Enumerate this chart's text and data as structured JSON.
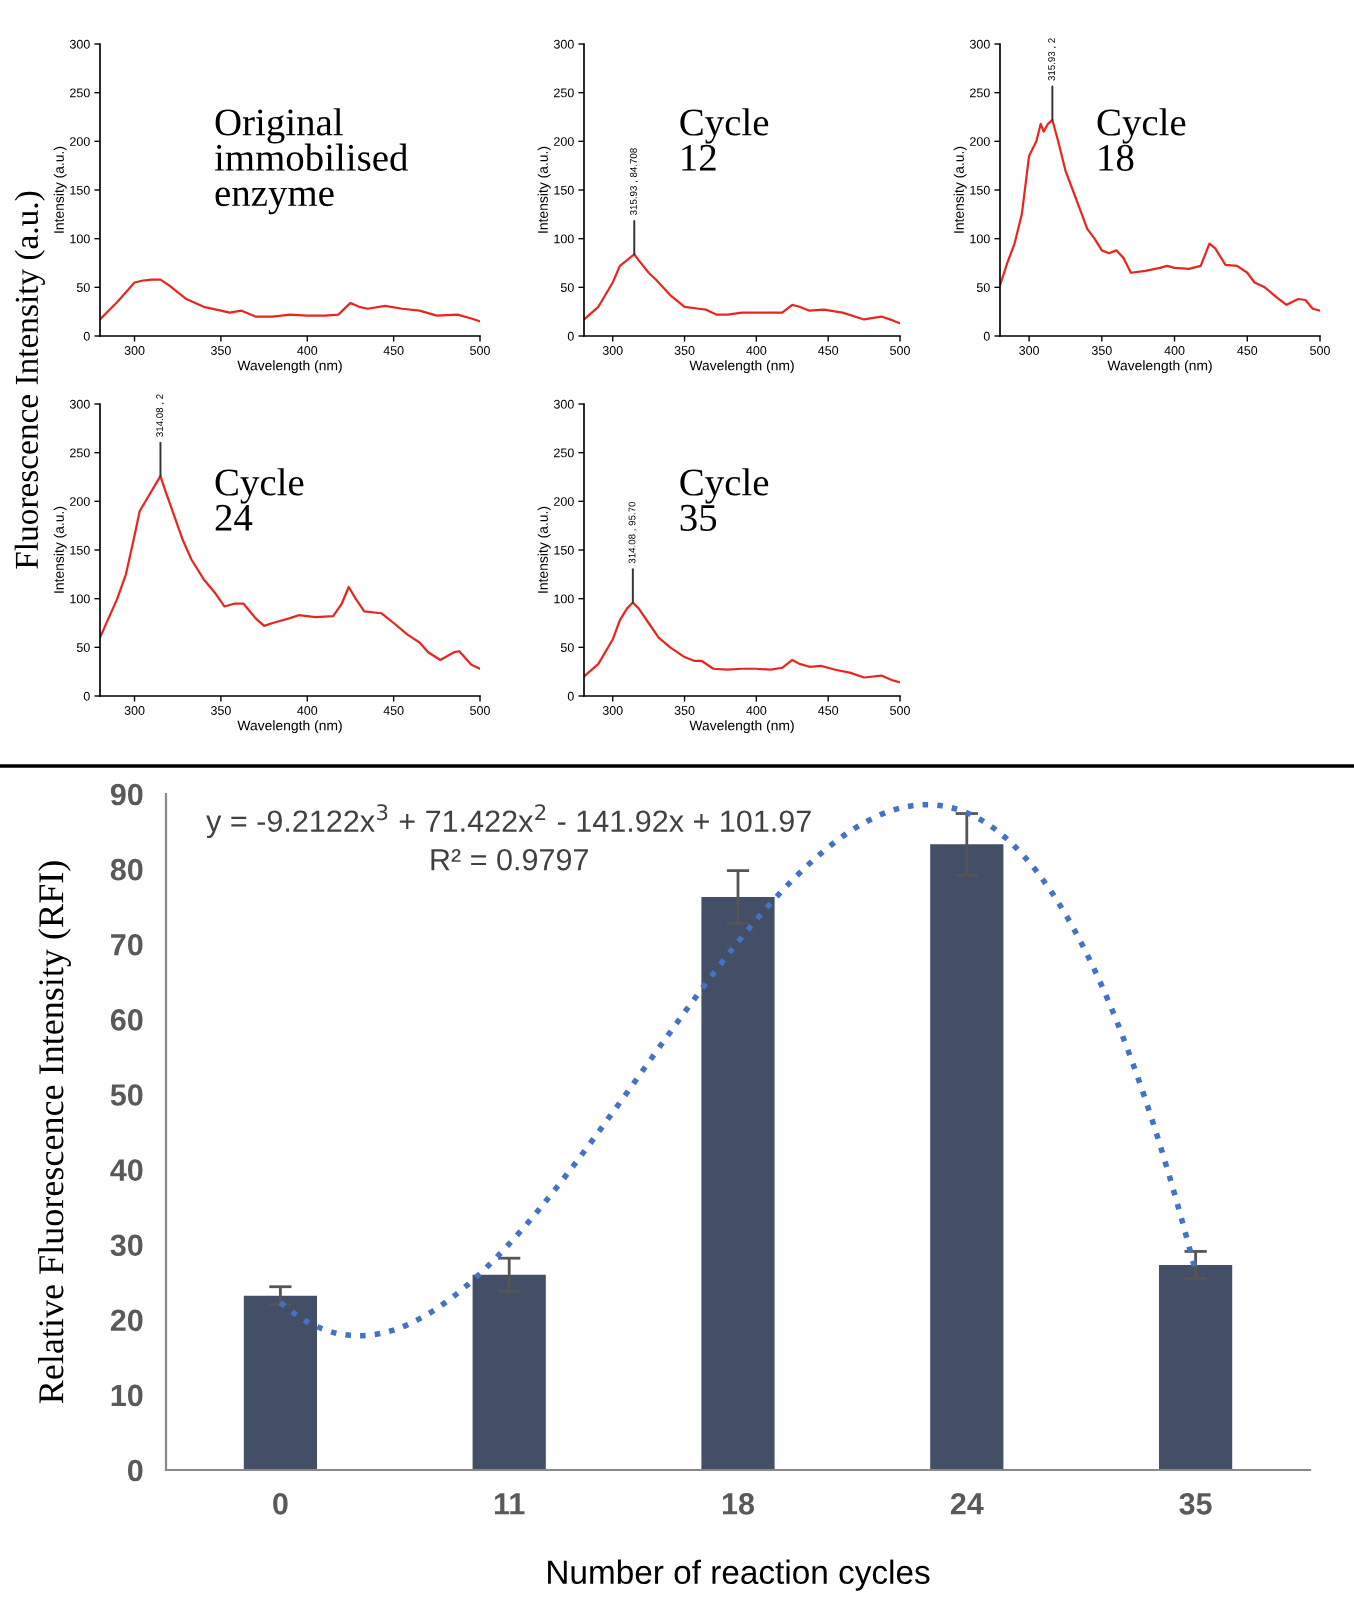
{
  "chart_data": [
    {
      "type": "line",
      "xlabel": "Wavelength (nm)",
      "ylabel": "Intensity (a.u.)",
      "xlim": [
        280,
        500
      ],
      "ylim": [
        0,
        300
      ],
      "xticks": [
        300,
        350,
        400,
        450,
        500
      ],
      "yticks": [
        0,
        50,
        100,
        150,
        200,
        250,
        300
      ],
      "annotations": [
        "Original immobilised enzyme",
        "Fluorescence Intensity (a.u.)"
      ],
      "series": [
        {
          "color": "#e8261f",
          "x": [
            280,
            290,
            300,
            305,
            310,
            315,
            320,
            330,
            340,
            350,
            355,
            362,
            370,
            380,
            390,
            400,
            410,
            418,
            425,
            430,
            435,
            445,
            455,
            465,
            475,
            487,
            495,
            500
          ],
          "values": [
            17,
            35,
            55,
            57,
            58,
            58,
            52,
            38,
            30,
            26,
            24,
            26,
            20,
            20,
            22,
            21,
            21,
            22,
            34,
            30,
            28,
            31,
            28,
            26,
            21,
            22,
            18,
            15
          ]
        }
      ]
    },
    {
      "type": "line",
      "xlabel": "Wavelength (nm)",
      "ylabel": "Intensity (a.u.)",
      "xlim": [
        280,
        500
      ],
      "ylim": [
        0,
        300
      ],
      "xticks": [
        300,
        350,
        400,
        450,
        500
      ],
      "yticks": [
        0,
        50,
        100,
        150,
        200,
        250,
        300
      ],
      "annotations": [
        "Cycle 12",
        {
          "text": "315.93 , 84.708",
          "x": 315,
          "y": 84
        }
      ],
      "series": [
        {
          "color": "#e8261f",
          "x": [
            280,
            290,
            300,
            305,
            310,
            315,
            318,
            325,
            330,
            340,
            350,
            360,
            365,
            372,
            380,
            390,
            400,
            410,
            418,
            425,
            430,
            437,
            447,
            460,
            475,
            487,
            495,
            500
          ],
          "values": [
            17,
            30,
            55,
            72,
            78,
            84,
            78,
            65,
            58,
            42,
            30,
            28,
            27,
            22,
            22,
            24,
            24,
            24,
            24,
            32,
            30,
            26,
            27,
            24,
            17,
            20,
            16,
            13
          ]
        }
      ]
    },
    {
      "type": "line",
      "xlabel": "Wavelength (nm)",
      "ylabel": "Intensity (a.u.)",
      "xlim": [
        280,
        500
      ],
      "ylim": [
        0,
        300
      ],
      "xticks": [
        300,
        350,
        400,
        450,
        500
      ],
      "yticks": [
        0,
        50,
        100,
        150,
        200,
        250,
        300
      ],
      "annotations": [
        "Cycle 18",
        {
          "text": "315.93 , 2",
          "x": 316,
          "y": 222
        }
      ],
      "series": [
        {
          "color": "#e8261f",
          "x": [
            280,
            285,
            290,
            295,
            300,
            305,
            308,
            310,
            313,
            316,
            320,
            325,
            330,
            335,
            340,
            345,
            350,
            355,
            360,
            365,
            370,
            380,
            390,
            395,
            400,
            410,
            418,
            424,
            428,
            435,
            443,
            450,
            455,
            462,
            470,
            477,
            485,
            490,
            495,
            500
          ],
          "values": [
            52,
            75,
            95,
            125,
            185,
            200,
            218,
            210,
            218,
            222,
            200,
            170,
            150,
            130,
            110,
            100,
            88,
            85,
            88,
            80,
            65,
            67,
            70,
            72,
            70,
            69,
            72,
            95,
            90,
            73,
            72,
            65,
            55,
            50,
            40,
            32,
            38,
            37,
            28,
            26
          ]
        }
      ]
    },
    {
      "type": "line",
      "xlabel": "Wavelength (nm)",
      "ylabel": "Intensity (a.u.)",
      "xlim": [
        280,
        500
      ],
      "ylim": [
        0,
        300
      ],
      "xticks": [
        300,
        350,
        400,
        450,
        500
      ],
      "yticks": [
        0,
        50,
        100,
        150,
        200,
        250,
        300
      ],
      "annotations": [
        "Cycle 24",
        {
          "text": "314.08 , 2",
          "x": 315,
          "y": 226
        }
      ],
      "series": [
        {
          "color": "#e8261f",
          "x": [
            280,
            285,
            290,
            295,
            300,
            303,
            308,
            313,
            315,
            318,
            322,
            328,
            333,
            340,
            347,
            352,
            358,
            363,
            370,
            375,
            380,
            390,
            395,
            405,
            415,
            420,
            424,
            428,
            433,
            443,
            450,
            458,
            465,
            470,
            477,
            485,
            488,
            495,
            500
          ],
          "values": [
            60,
            80,
            100,
            125,
            165,
            190,
            205,
            220,
            226,
            210,
            190,
            160,
            140,
            120,
            105,
            92,
            95,
            95,
            80,
            72,
            75,
            80,
            83,
            81,
            82,
            95,
            112,
            100,
            87,
            85,
            75,
            63,
            55,
            45,
            37,
            45,
            46,
            32,
            28
          ]
        }
      ]
    },
    {
      "type": "line",
      "xlabel": "Wavelength (nm)",
      "ylabel": "Intensity (a.u.)",
      "xlim": [
        280,
        500
      ],
      "ylim": [
        0,
        300
      ],
      "xticks": [
        300,
        350,
        400,
        450,
        500
      ],
      "yticks": [
        0,
        50,
        100,
        150,
        200,
        250,
        300
      ],
      "annotations": [
        "Cycle 35",
        {
          "text": "314.08 , 95.70",
          "x": 314,
          "y": 96
        }
      ],
      "series": [
        {
          "color": "#e8261f",
          "x": [
            280,
            290,
            300,
            305,
            310,
            314,
            318,
            325,
            332,
            340,
            350,
            357,
            362,
            370,
            380,
            390,
            400,
            410,
            418,
            425,
            430,
            437,
            445,
            455,
            465,
            475,
            487,
            495,
            500
          ],
          "values": [
            20,
            33,
            58,
            78,
            90,
            96,
            90,
            75,
            60,
            50,
            40,
            36,
            36,
            28,
            27,
            28,
            28,
            27,
            29,
            37,
            33,
            30,
            31,
            27,
            24,
            19,
            21,
            16,
            14
          ]
        }
      ]
    },
    {
      "type": "bar",
      "xlabel": "Number of reaction cycles",
      "ylabel": "Relative Fluorescence Intensity (RFI)",
      "categories": [
        "0",
        "11",
        "18",
        "24",
        "35"
      ],
      "ylim": [
        0,
        90
      ],
      "yticks": [
        0,
        10,
        20,
        30,
        40,
        50,
        60,
        70,
        80,
        90
      ],
      "annotations": [
        "y = -9.2122x$^{3}$ + 71.422x$^{2}$ - 141.92x + 101.97",
        "R² = 0.9797"
      ],
      "series": [
        {
          "type": "bar",
          "color": "#434f66",
          "values": [
            23.2,
            26.0,
            76.3,
            83.3,
            27.3
          ],
          "errors": [
            1.2,
            2.2,
            3.5,
            4.1,
            1.8
          ]
        },
        {
          "type": "line",
          "color": "#4472c4",
          "line_style": "dotted",
          "values": [
            22.3,
            30.1,
            70.3,
            87.5,
            26.4
          ]
        }
      ]
    }
  ]
}
